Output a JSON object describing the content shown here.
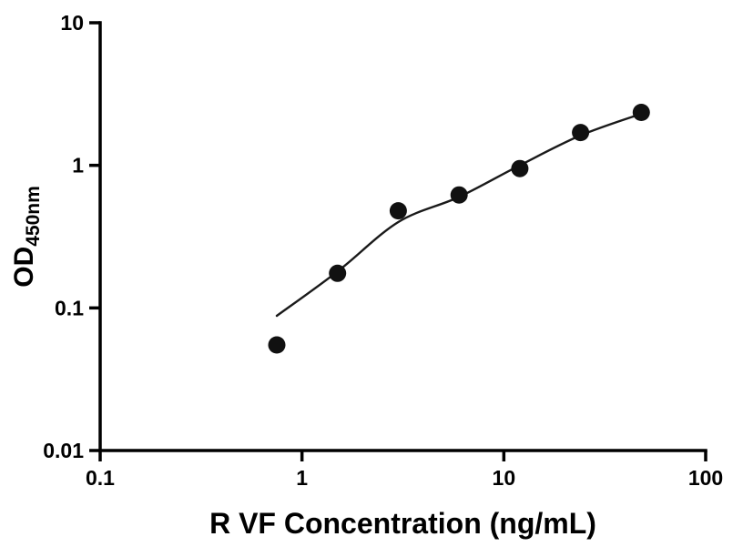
{
  "figure": {
    "background_color": "#ffffff",
    "axis_color": "#000000",
    "marker_color": "#111111",
    "curve_color": "#1a1a1a"
  },
  "chart_data": {
    "type": "scatter",
    "title": "",
    "xlabel": "R VF Concentration (ng/mL)",
    "ylabel_main": "OD",
    "ylabel_sub": "450nm",
    "x_scale": "log",
    "y_scale": "log",
    "xlim": [
      0.1,
      100
    ],
    "ylim": [
      0.01,
      10
    ],
    "x_ticks": [
      0.1,
      1,
      10,
      100
    ],
    "x_tick_labels": [
      "0.1",
      "1",
      "10",
      "100"
    ],
    "y_ticks": [
      0.01,
      0.1,
      1,
      10
    ],
    "y_tick_labels": [
      "0.01",
      "0.1",
      "1",
      "10"
    ],
    "grid": false,
    "legend": false,
    "series": [
      {
        "name": "standard-points",
        "type": "scatter",
        "x": [
          0.75,
          1.5,
          3,
          6,
          12,
          24,
          48
        ],
        "y": [
          0.055,
          0.175,
          0.48,
          0.62,
          0.95,
          1.7,
          2.35
        ]
      },
      {
        "name": "fit-curve",
        "type": "line",
        "x": [
          0.75,
          1.5,
          3,
          6,
          12,
          24,
          48
        ],
        "y": [
          0.088,
          0.18,
          0.4,
          0.6,
          1.0,
          1.62,
          2.3
        ]
      }
    ]
  }
}
